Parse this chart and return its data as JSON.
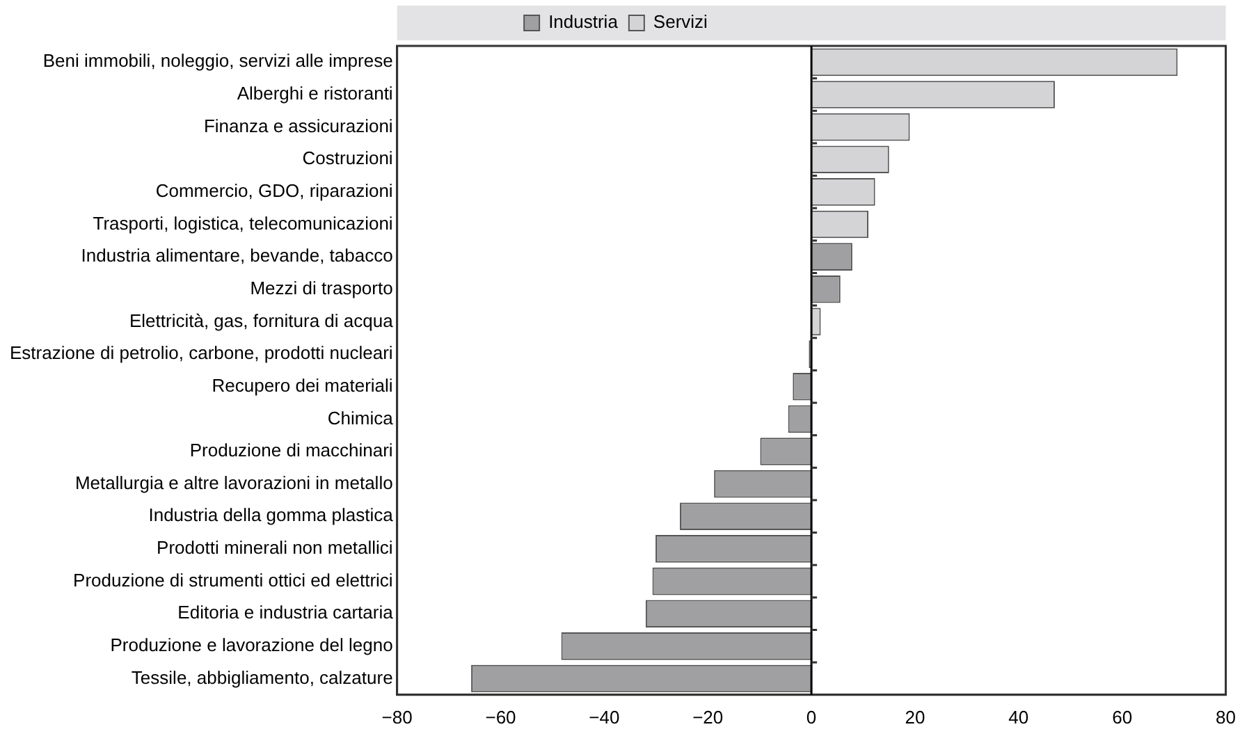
{
  "chart_data": {
    "type": "bar",
    "orientation": "horizontal",
    "stacked": true,
    "categories": [
      "Beni immobili, noleggio, servizi alle imprese",
      "Alberghi e ristoranti",
      "Finanza e assicurazioni",
      "Costruzioni",
      "Commercio, GDO, riparazioni",
      "Trasporti, logistica, telecomunicazioni",
      "Industria alimentare, bevande, tabacco",
      "Mezzi di trasporto",
      "Elettricità, gas, fornitura di acqua",
      "Estrazione di petrolio, carbone, prodotti nucleari",
      "Recupero dei materiali",
      "Chimica",
      "Produzione di macchinari",
      "Metallurgia e altre lavorazioni in metallo",
      "Industria della gomma plastica",
      "Prodotti minerali non metallici",
      "Produzione di strumenti ottici ed elettrici",
      "Editoria e industria cartaria",
      "Produzione e lavorazione del legno",
      "Tessile, abbigliamento, calzature"
    ],
    "series": [
      {
        "name": "Industria",
        "color": "#a0a0a2",
        "values": [
          null,
          null,
          null,
          null,
          null,
          null,
          7.9,
          5.6,
          null,
          -0.5,
          -3.6,
          -4.5,
          -9.9,
          -18.8,
          -25.4,
          -30.1,
          -30.7,
          -32.0,
          -48.3,
          -65.7
        ]
      },
      {
        "name": "Servizi",
        "color": "#d4d4d6",
        "values": [
          70.7,
          47,
          19,
          15,
          12.3,
          11,
          null,
          null,
          1.8,
          null,
          null,
          null,
          null,
          null,
          null,
          null,
          null,
          null,
          null,
          null
        ]
      }
    ],
    "xlim": [
      -80,
      80
    ],
    "xticks": [
      {
        "value": -80,
        "label": "−80"
      },
      {
        "value": -60,
        "label": "−60"
      },
      {
        "value": -40,
        "label": "−40"
      },
      {
        "value": -20,
        "label": "−20"
      },
      0,
      20,
      40,
      60,
      80
    ],
    "ref_lines": [
      {
        "axis": "x",
        "value": 0,
        "color": "#000000"
      }
    ],
    "legend": "top"
  }
}
